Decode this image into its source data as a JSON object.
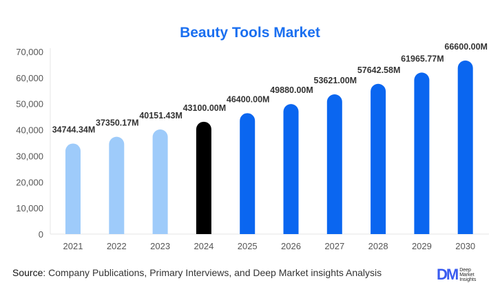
{
  "chart_data": {
    "type": "bar",
    "title": "Beauty Tools Market",
    "categories": [
      "2021",
      "2022",
      "2023",
      "2024",
      "2025",
      "2026",
      "2027",
      "2028",
      "2029",
      "2030"
    ],
    "values": [
      34744.34,
      37350.17,
      40151.43,
      43100.0,
      46400.0,
      49880.0,
      53621.0,
      57642.58,
      61965.77,
      66600.0
    ],
    "data_labels": [
      "34744.34M",
      "37350.17M",
      "40151.43M",
      "43100.00M",
      "46400.00M",
      "49880.00M",
      "53621.00M",
      "57642.58M",
      "61965.77M",
      "66600.00M"
    ],
    "ylim": [
      0,
      70000
    ],
    "yticks": [
      0,
      10000,
      20000,
      30000,
      40000,
      50000,
      60000,
      70000
    ],
    "ytick_labels": [
      "0",
      "10,000",
      "20,000",
      "30,000",
      "40,000",
      "50,000",
      "60,000",
      "70,000"
    ],
    "xlabel": "",
    "ylabel": "",
    "grid": false,
    "colors": {
      "historical": "#9ecbfa",
      "base_year": "#000000",
      "forecast": "#0a66f0",
      "title": "#1a6ff0"
    },
    "bar_color_groups": [
      "historical",
      "historical",
      "historical",
      "base_year",
      "forecast",
      "forecast",
      "forecast",
      "forecast",
      "forecast",
      "forecast"
    ]
  },
  "footer": {
    "source_label": "Source",
    "source_text": ": Company Publications, Primary Interviews, and Deep Market insights Analysis"
  },
  "logo": {
    "mark": "DM",
    "lines": [
      "Deep",
      "Market",
      "Insights"
    ]
  }
}
